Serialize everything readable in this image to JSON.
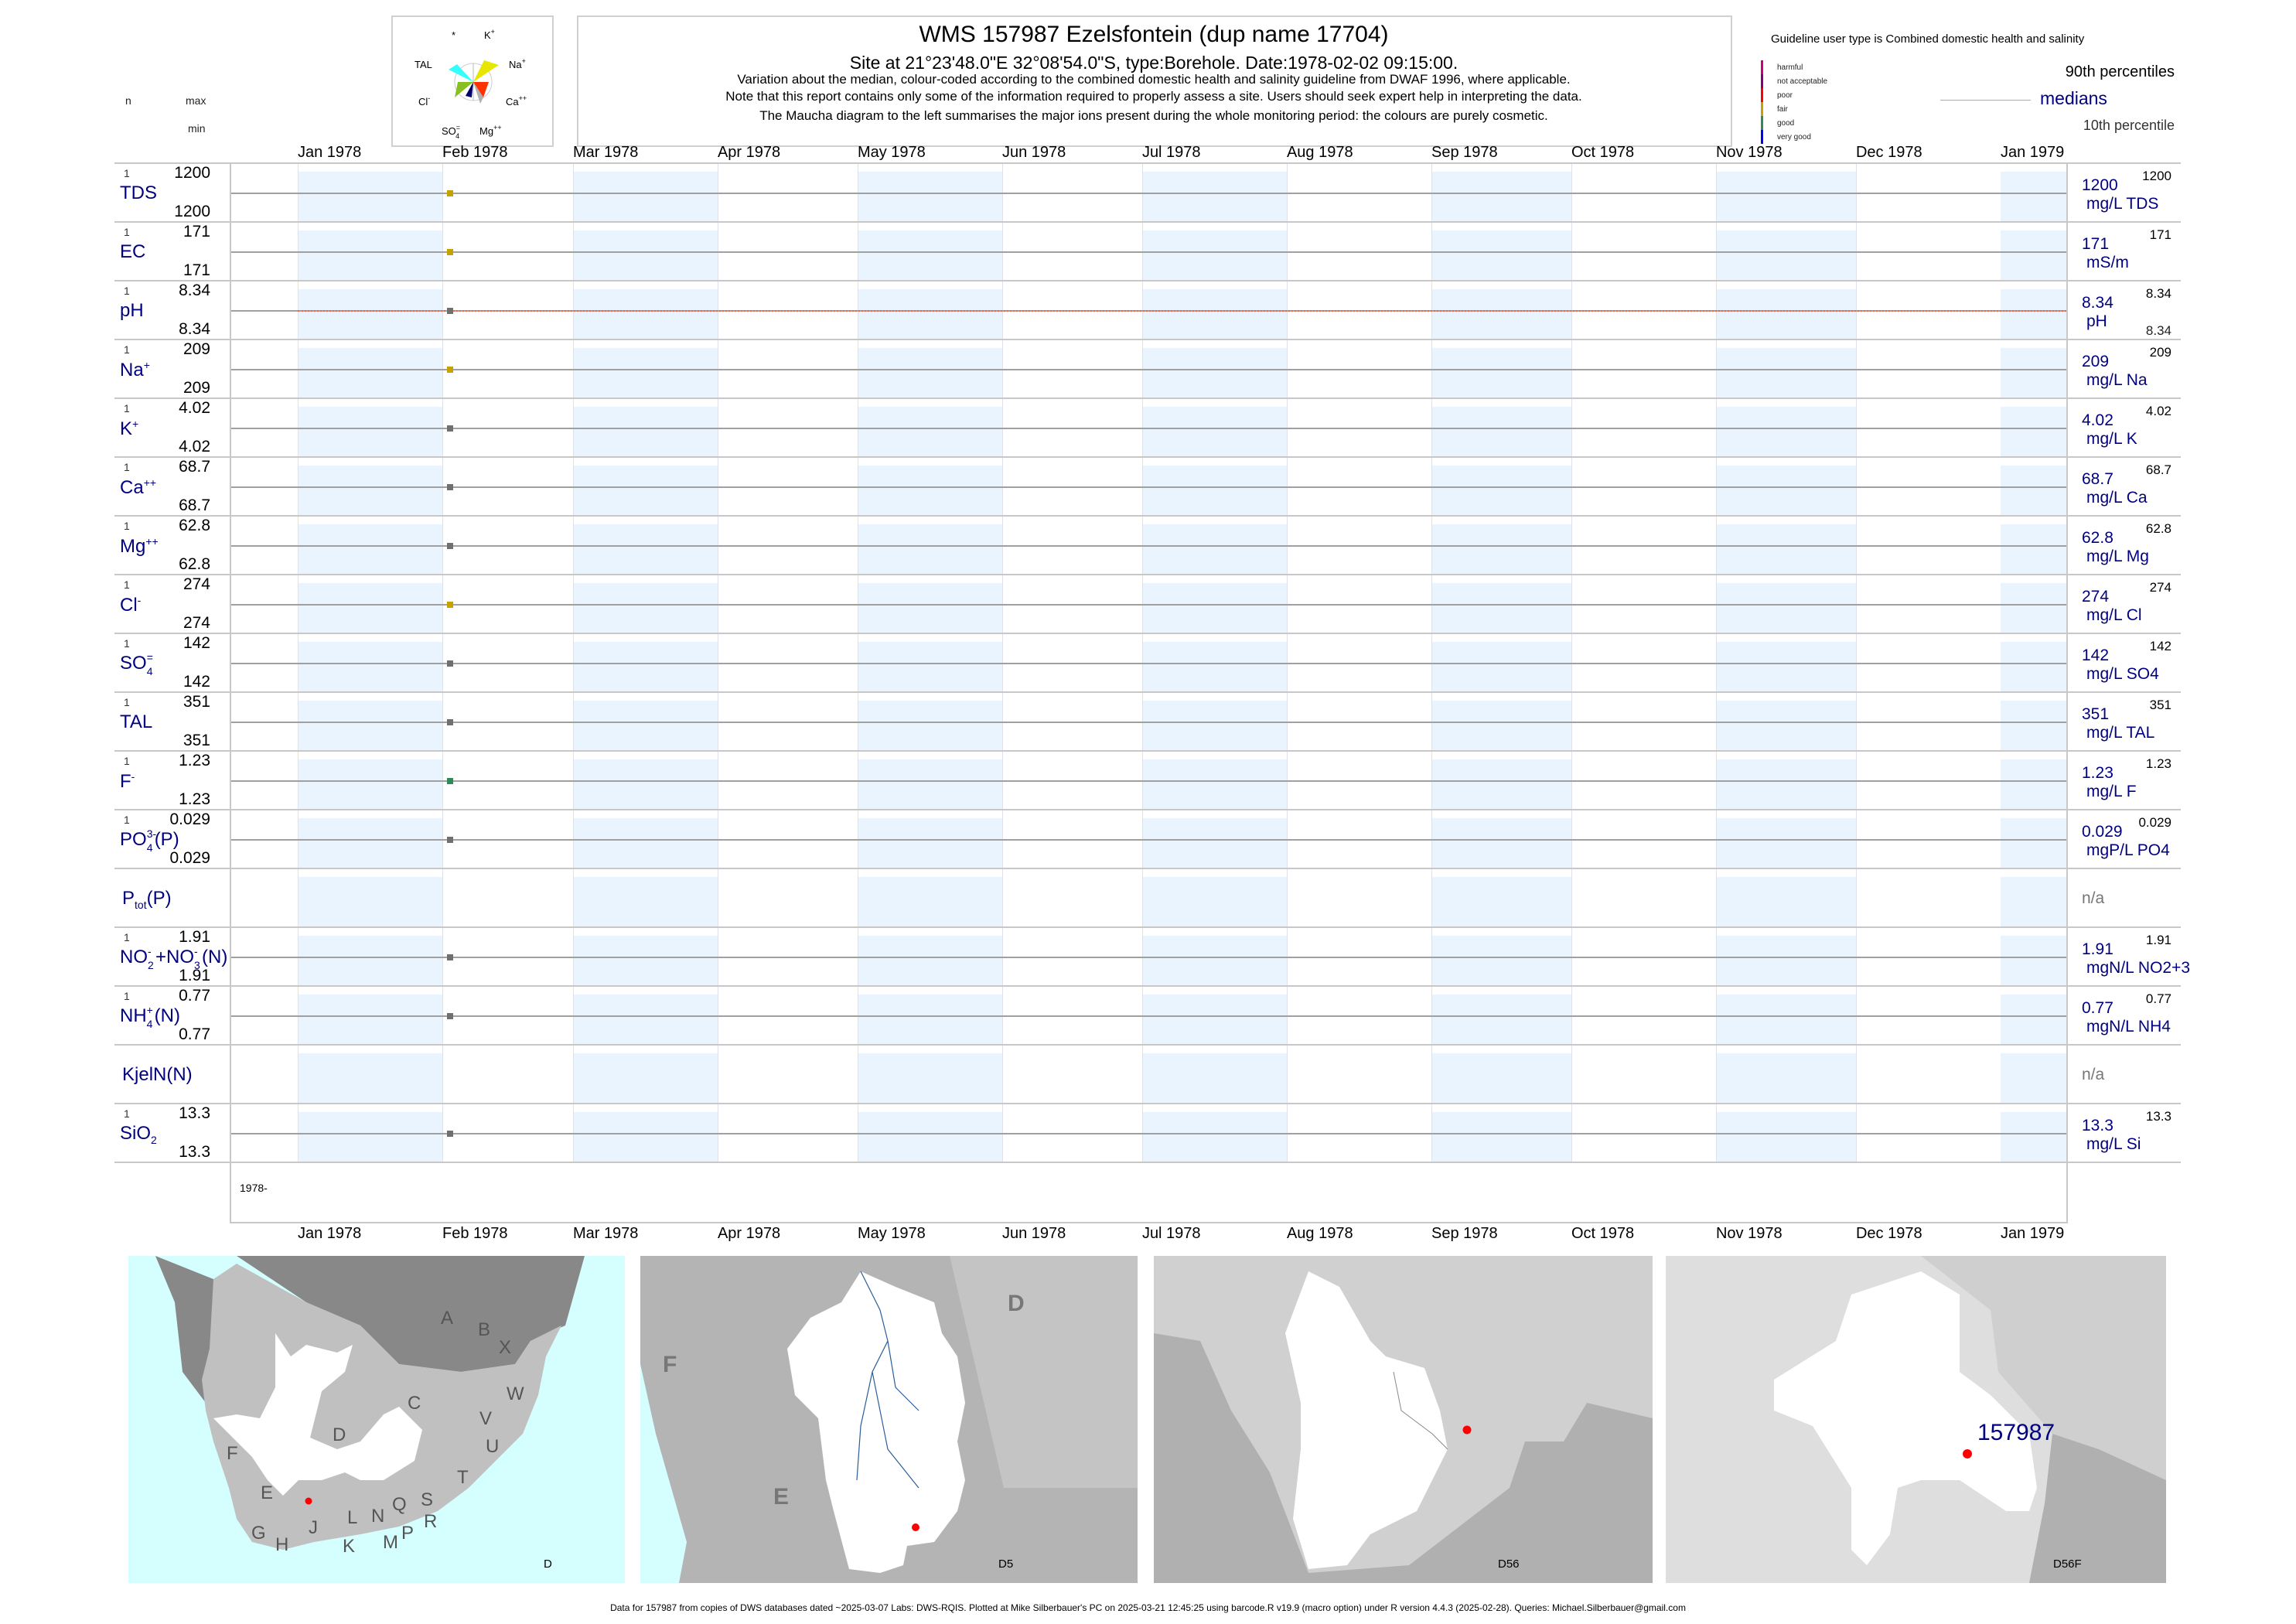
{
  "header": {
    "title": "WMS 157987  Ezelsfontein (dup name 17704)",
    "subtitle": "Site at 21°23'48.0\"E 32°08'54.0\"S, type:Borehole. Date:1978-02-02 09:15:00.",
    "note1": "Variation about the median,  colour-coded according to the combined domestic health and salinity guideline from DWAF 1996, where applicable.",
    "note2": "Note that this report contains only some of the information required to properly assess a site. Users should seek expert help in interpreting the data.",
    "note3": "The Maucha diagram to the left summarises the major ions present during the whole monitoring period: the colours are purely cosmetic."
  },
  "maucha": {
    "labels": {
      "star": "*",
      "k": "K",
      "k_sup": "+",
      "tal": "TAL",
      "na": "Na",
      "na_sup": "+",
      "cl": "Cl",
      "cl_sup": "-",
      "ca": "Ca",
      "ca_sup": "++",
      "so4": "SO",
      "so4_sub": "4",
      "so4_sup": "=",
      "mg": "Mg",
      "mg_sup": "++"
    },
    "colors": {
      "tal": "#33ffff",
      "na": "#e6e600",
      "ca": "#ff3300",
      "mg": "#b0b0b0",
      "so4": "#000066",
      "cl": "#88c020"
    }
  },
  "legend": {
    "guideline_title": "Guideline user type is Combined domestic health and salinity",
    "classes": [
      {
        "label": "harmful",
        "color": "#cc0077"
      },
      {
        "label": "not acceptable",
        "color": "#800080"
      },
      {
        "label": "poor",
        "color": "#ff0000"
      },
      {
        "label": "fair",
        "color": "#c8a000"
      },
      {
        "label": "good",
        "color": "#2e8b57"
      },
      {
        "label": "very good",
        "color": "#0000ff"
      }
    ],
    "p90_label": "90th percentiles",
    "median_label": "medians",
    "p10_label": "10th percentile",
    "no_guideline_color": "#707070"
  },
  "columns": {
    "n": "n",
    "max": "max",
    "min": "min"
  },
  "axis": {
    "months": [
      "Jan 1978",
      "Feb 1978",
      "Mar 1978",
      "Apr 1978",
      "May 1978",
      "Jun 1978",
      "Jul 1978",
      "Aug 1978",
      "Sep 1978",
      "Oct 1978",
      "Nov 1978",
      "Dec 1978",
      "Jan 1979"
    ],
    "year_label": "1978-"
  },
  "chart_data": {
    "type": "scatter",
    "x_range": [
      "1978-01-01",
      "1979-01-01"
    ],
    "x_ticks": [
      "Jan 1978",
      "Feb 1978",
      "Mar 1978",
      "Apr 1978",
      "May 1978",
      "Jun 1978",
      "Jul 1978",
      "Aug 1978",
      "Sep 1978",
      "Oct 1978",
      "Nov 1978",
      "Dec 1978",
      "Jan 1979"
    ],
    "sample_date": "1978-02-02",
    "parameters": [
      {
        "key": "TDS",
        "label": [
          {
            "t": "TDS"
          }
        ],
        "n": "1",
        "max": "1200",
        "min": "1200",
        "median": "1200",
        "unit": "mg/L TDS",
        "p90": "1200",
        "class": "fair",
        "value": 1200
      },
      {
        "key": "EC",
        "label": [
          {
            "t": "EC"
          }
        ],
        "n": "1",
        "max": "171",
        "min": "171",
        "median": "171",
        "unit": "mS/m",
        "p90": "171",
        "class": "fair",
        "value": 171
      },
      {
        "key": "pH",
        "label": [
          {
            "t": "pH"
          }
        ],
        "n": "1",
        "max": "8.34",
        "min": "8.34",
        "median": "8.34",
        "unit": "pH",
        "p90": "8.34",
        "p10": "8.34",
        "class": "none",
        "value": 8.34,
        "guideline_line": true
      },
      {
        "key": "Na",
        "label": [
          {
            "t": "Na"
          },
          {
            "sup": "+"
          }
        ],
        "n": "1",
        "max": "209",
        "min": "209",
        "median": "209",
        "unit": "mg/L Na",
        "p90": "209",
        "class": "fair",
        "value": 209
      },
      {
        "key": "K",
        "label": [
          {
            "t": "K"
          },
          {
            "sup": "+"
          }
        ],
        "n": "1",
        "max": "4.02",
        "min": "4.02",
        "median": "4.02",
        "unit": "mg/L K",
        "p90": "4.02",
        "class": "none",
        "value": 4.02
      },
      {
        "key": "Ca",
        "label": [
          {
            "t": "Ca"
          },
          {
            "sup": "++"
          }
        ],
        "n": "1",
        "max": "68.7",
        "min": "68.7",
        "median": "68.7",
        "unit": "mg/L Ca",
        "p90": "68.7",
        "class": "none",
        "value": 68.7
      },
      {
        "key": "Mg",
        "label": [
          {
            "t": "Mg"
          },
          {
            "sup": "++"
          }
        ],
        "n": "1",
        "max": "62.8",
        "min": "62.8",
        "median": "62.8",
        "unit": "mg/L Mg",
        "p90": "62.8",
        "class": "none",
        "value": 62.8
      },
      {
        "key": "Cl",
        "label": [
          {
            "t": "Cl"
          },
          {
            "sup": "-"
          }
        ],
        "n": "1",
        "max": "274",
        "min": "274",
        "median": "274",
        "unit": "mg/L Cl",
        "p90": "274",
        "class": "fair",
        "value": 274
      },
      {
        "key": "SO4",
        "label": [
          {
            "t": "SO"
          },
          {
            "sup": "=",
            "sub": "4"
          }
        ],
        "n": "1",
        "max": "142",
        "min": "142",
        "median": "142",
        "unit": "mg/L SO4",
        "p90": "142",
        "class": "none",
        "value": 142
      },
      {
        "key": "TAL",
        "label": [
          {
            "t": "TAL"
          }
        ],
        "n": "1",
        "max": "351",
        "min": "351",
        "median": "351",
        "unit": "mg/L TAL",
        "p90": "351",
        "class": "none",
        "value": 351
      },
      {
        "key": "F",
        "label": [
          {
            "t": "F"
          },
          {
            "sup": "-"
          }
        ],
        "n": "1",
        "max": "1.23",
        "min": "1.23",
        "median": "1.23",
        "unit": "mg/L F",
        "p90": "1.23",
        "class": "good",
        "value": 1.23
      },
      {
        "key": "PO4",
        "label": [
          {
            "t": "PO"
          },
          {
            "sup": "3-",
            "sub": "4"
          },
          {
            "t": "(P)"
          }
        ],
        "n": "1",
        "max": "0.029",
        "min": "0.029",
        "median": "0.029",
        "unit": "mgP/L PO4",
        "p90": "0.029",
        "class": "none",
        "value": 0.029
      },
      {
        "key": "Ptot",
        "label": [
          {
            "t": "P"
          },
          {
            "sub": "tot"
          },
          {
            "t": "(P)"
          }
        ],
        "na": "n/a"
      },
      {
        "key": "NO23",
        "label": [
          {
            "t": "NO"
          },
          {
            "sup": "-",
            "sub": "2"
          },
          {
            "t": "+NO"
          },
          {
            "sup": "-",
            "sub": "3"
          },
          {
            "t": "(N)"
          }
        ],
        "n": "1",
        "max": "1.91",
        "min": "1.91",
        "median": "1.91",
        "unit": "mgN/L NO2+3",
        "p90": "1.91",
        "class": "none",
        "value": 1.91
      },
      {
        "key": "NH4",
        "label": [
          {
            "t": "NH"
          },
          {
            "sup": "+",
            "sub": "4"
          },
          {
            "t": "(N)"
          }
        ],
        "n": "1",
        "max": "0.77",
        "min": "0.77",
        "median": "0.77",
        "unit": "mgN/L NH4",
        "p90": "0.77",
        "class": "none",
        "value": 0.77
      },
      {
        "key": "KjelN",
        "label": [
          {
            "t": "KjelN(N)"
          }
        ],
        "na": "n/a"
      },
      {
        "key": "SiO2",
        "label": [
          {
            "t": "SiO"
          },
          {
            "sub": "2"
          }
        ],
        "n": "1",
        "max": "13.3",
        "min": "13.3",
        "median": "13.3",
        "unit": "mg/L Si",
        "p90": "13.3",
        "class": "none",
        "value": 13.3
      }
    ]
  },
  "maps": {
    "map1": {
      "caption": "D",
      "letters": [
        "A",
        "B",
        "X",
        "C",
        "W",
        "V",
        "D",
        "U",
        "F",
        "T",
        "E",
        "S",
        "Q",
        "N",
        "R",
        "L",
        "J",
        "P",
        "G",
        "M",
        "H",
        "K"
      ]
    },
    "map2": {
      "caption": "D5",
      "letters": [
        "F",
        "D",
        "E"
      ]
    },
    "map3": {
      "caption": "D56"
    },
    "map4": {
      "caption": "D56F",
      "site_label": "157987"
    },
    "site_color": "#ff0000"
  },
  "footer": "Data for 157987 from copies of DWS databases dated ~2025-03-07 Labs: DWS-RQIS. Plotted at Mike Silberbauer's PC on 2025-03-21 12:45:25 using barcode.R v19.9 (macro option) under R version 4.4.3 (2025-02-28). Queries: Michael.Silberbauer@gmail.com"
}
